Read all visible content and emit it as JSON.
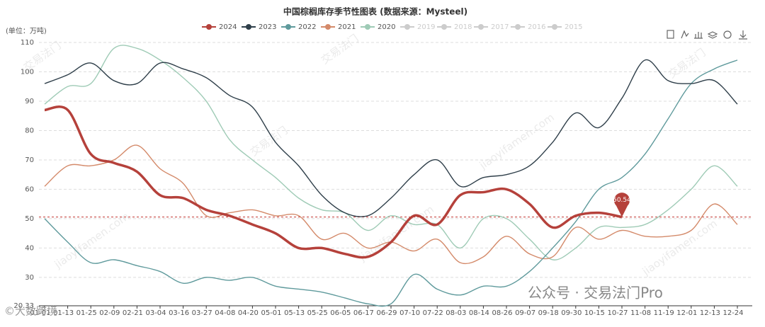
{
  "chart_data": {
    "type": "line",
    "title": "中国棕榈库存季节性图表 (数据来源：Mysteel)",
    "y_label": "(单位：万吨)",
    "categories": [
      "01-01",
      "01-13",
      "01-25",
      "02-09",
      "02-21",
      "03-04",
      "03-16",
      "03-27",
      "04-08",
      "04-20",
      "05-01",
      "05-13",
      "05-25",
      "06-05",
      "06-17",
      "06-29",
      "07-10",
      "07-22",
      "08-03",
      "08-14",
      "08-26",
      "09-07",
      "09-18",
      "09-30",
      "10-15",
      "10-27",
      "11-08",
      "11-19",
      "12-01",
      "12-13",
      "12-24"
    ],
    "series": [
      {
        "name": "2024",
        "color": "#b5413b",
        "values": [
          87,
          87,
          72,
          69,
          66,
          58,
          57,
          53,
          51,
          48,
          45,
          40,
          40,
          38,
          37,
          42,
          51,
          48,
          58,
          59,
          60,
          55,
          47,
          51,
          52,
          50.54,
          null,
          null,
          null,
          null,
          null
        ]
      },
      {
        "name": "2023",
        "color": "#2f3f4a",
        "values": [
          96,
          99,
          103,
          97,
          96,
          103,
          101,
          98,
          92,
          88,
          76,
          68,
          58,
          52,
          51,
          57,
          65,
          70,
          61,
          64,
          65,
          68,
          76,
          86,
          81,
          91,
          104,
          97,
          96,
          97,
          89
        ]
      },
      {
        "name": "2022",
        "color": "#5f9a9c",
        "values": [
          50,
          42,
          35,
          36,
          34,
          32,
          28,
          30,
          29,
          30,
          27,
          26,
          25,
          23,
          21,
          21,
          31,
          26,
          24,
          27,
          27,
          32,
          40,
          49,
          60,
          64,
          72,
          84,
          96,
          101,
          104
        ]
      },
      {
        "name": "2021",
        "color": "#d48a6a",
        "values": [
          61,
          68,
          68,
          70,
          75,
          67,
          62,
          51,
          52,
          53,
          51,
          51,
          43,
          45,
          40,
          42,
          39,
          43,
          35,
          37,
          44,
          38,
          37,
          47,
          43,
          46,
          44,
          44,
          46,
          55,
          48
        ]
      },
      {
        "name": "2020",
        "color": "#9fcbb6",
        "values": [
          89,
          95,
          96,
          108,
          108,
          104,
          98,
          90,
          77,
          70,
          64,
          57,
          53,
          52,
          46,
          51,
          48,
          48,
          40,
          50,
          50,
          43,
          36,
          40,
          47,
          47,
          48,
          53,
          60,
          68,
          61
        ]
      }
    ],
    "inactive_legend": [
      "2019",
      "2018",
      "2017",
      "2016",
      "2015"
    ],
    "mark_value": 50.54,
    "ylim": [
      20.33,
      110
    ],
    "yticks": [
      20.33,
      30,
      40,
      50,
      60,
      70,
      80,
      90,
      100,
      110
    ],
    "grid": true,
    "watermark": "交易法门",
    "watermark_url": "jiaoyifamen.com",
    "footer_watermark": "公众号 · 交易法门Pro",
    "corner_watermark": "©大数跨境"
  }
}
